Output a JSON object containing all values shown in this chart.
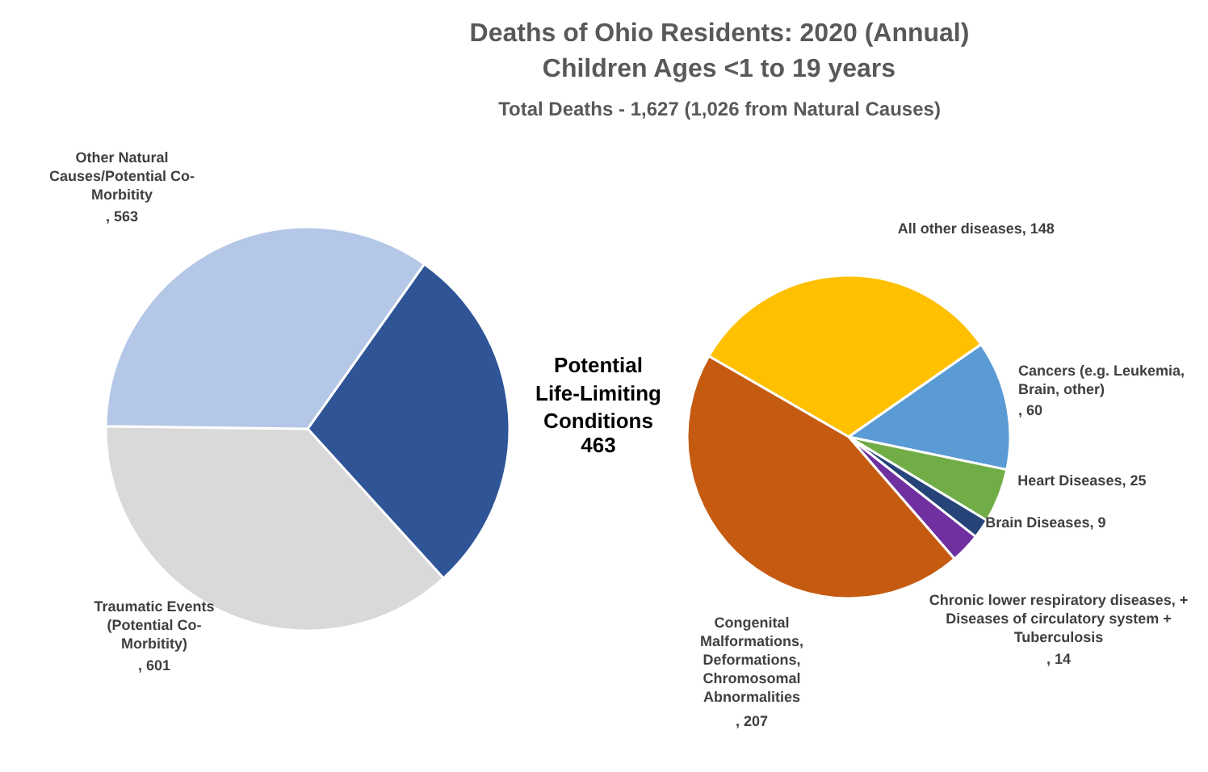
{
  "chart_data": [
    {
      "type": "pie",
      "title": "Deaths of Ohio Residents: 2020 (Annual)\nChildren Ages <1 to 19 years",
      "subtitle": "Total Deaths - 1,627 (1,026 from Natural Causes)",
      "categories": [
        "Potential Life-Limiting Conditions",
        "Traumatic Events (Potential Co-Morbitity)",
        "Other Natural Causes/Potential Co-Morbitity"
      ],
      "values": [
        463,
        601,
        563
      ],
      "colors": [
        "#2f5597",
        "#d9d9d9",
        "#b4c7e7"
      ],
      "value_labels": [
        "463",
        ", 601",
        ", 563"
      ]
    },
    {
      "type": "pie",
      "categories": [
        "All other diseases",
        "Cancers (e.g. Leukemia, Brain, other)",
        "Heart Diseases",
        "Brain Diseases",
        "Chronic lower respiratory diseases, + Diseases of circulatory system + Tuberculosis",
        "Congenital Malformations, Deformations, Chromosomal Abnormalities"
      ],
      "values": [
        148,
        60,
        25,
        9,
        14,
        207
      ],
      "colors": [
        "#ffc000",
        "#5b9bd5",
        "#70ad47",
        "#264478",
        "#7030a0",
        "#c55a11"
      ],
      "value_labels": [
        ", 148",
        ", 60",
        ", 25",
        ", 9",
        ", 14",
        ", 207"
      ]
    }
  ]
}
